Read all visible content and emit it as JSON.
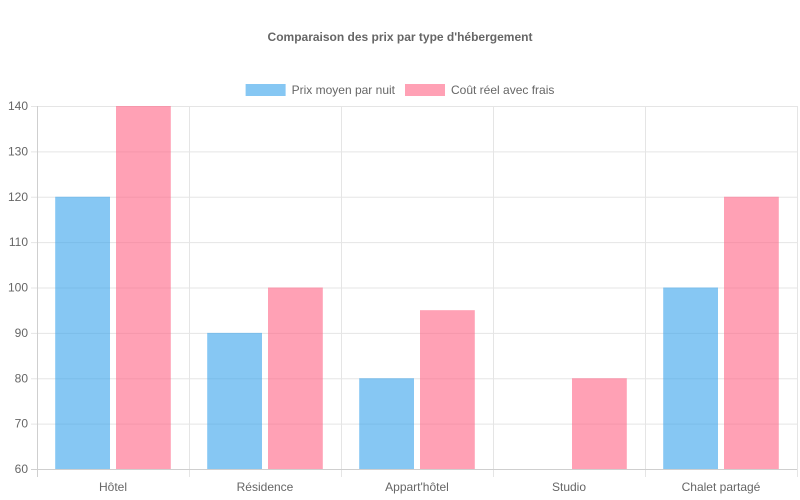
{
  "chart_data": {
    "type": "bar",
    "title": "Comparaison des prix par type d'hébergement",
    "categories": [
      "Hôtel",
      "Résidence",
      "Appart'hôtel",
      "Studio",
      "Chalet partagé"
    ],
    "series": [
      {
        "name": "Prix moyen par nuit",
        "values": [
          120,
          90,
          80,
          60,
          100
        ],
        "color": "#36a2eb",
        "fill": "rgba(54,162,235,0.6)"
      },
      {
        "name": "Coût réel avec frais",
        "values": [
          140,
          100,
          95,
          80,
          120
        ],
        "color": "#ff6384",
        "fill": "rgba(255,99,132,0.6)"
      }
    ],
    "ylim": [
      60,
      140
    ],
    "yticks": [
      60,
      70,
      80,
      90,
      100,
      110,
      120,
      130,
      140
    ],
    "grid": true,
    "legend_position": "top-center"
  }
}
